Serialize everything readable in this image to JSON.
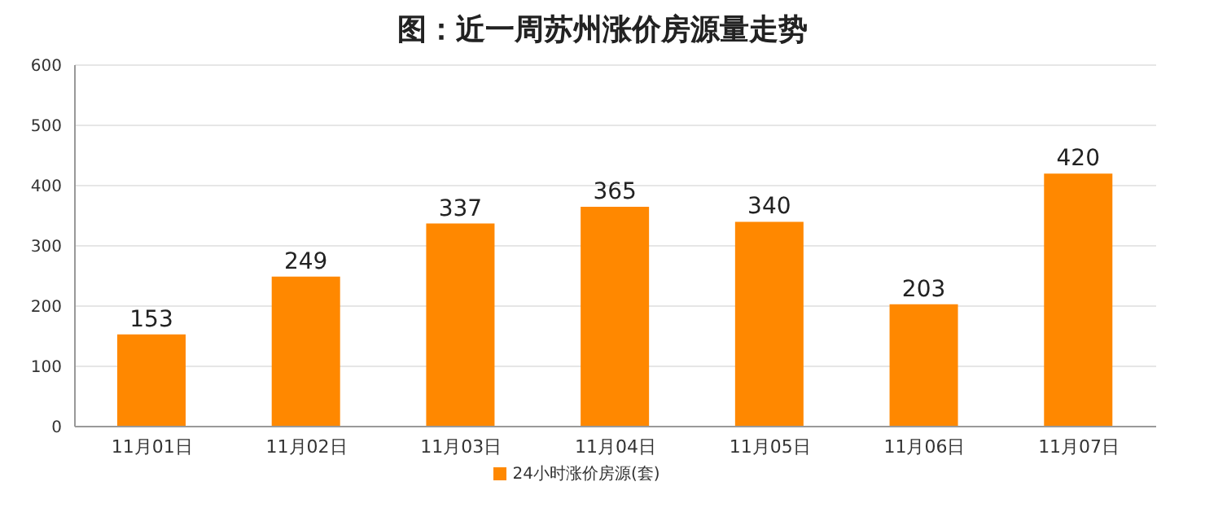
{
  "chart_data": {
    "type": "bar",
    "title": "图：近一周苏州涨价房源量走势",
    "categories": [
      "11月01日",
      "11月02日",
      "11月03日",
      "11月04日",
      "11月05日",
      "11月06日",
      "11月07日"
    ],
    "series": [
      {
        "name": "24小时涨价房源(套)",
        "color": "#ff8800",
        "values": [
          153,
          249,
          337,
          365,
          340,
          203,
          420
        ]
      }
    ],
    "ylim": [
      0,
      600
    ],
    "yticks": [
      0,
      100,
      200,
      300,
      400,
      500,
      600
    ],
    "grid": "y",
    "legend": "bottom",
    "data_labels": true
  }
}
